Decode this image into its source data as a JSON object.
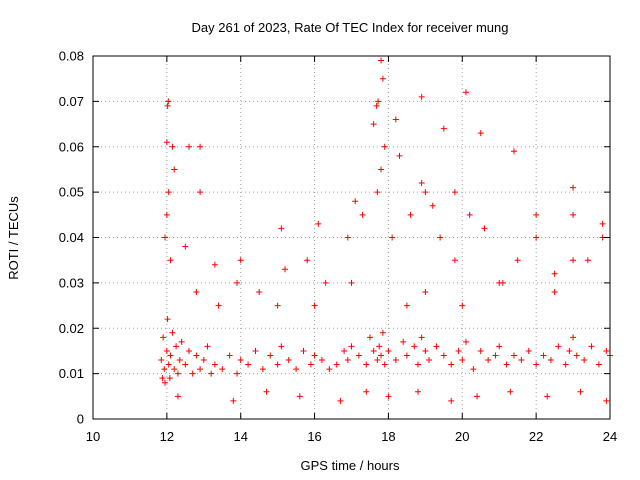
{
  "chart_data": {
    "type": "scatter",
    "title": "Day 261 of 2023, Rate Of TEC Index for receiver mung",
    "xlabel": "GPS time / hours",
    "ylabel": "ROTI / TECUs",
    "xlim": [
      10,
      24
    ],
    "ylim": [
      0,
      0.08
    ],
    "xticks": [
      10,
      12,
      14,
      16,
      18,
      20,
      22,
      24
    ],
    "yticks": [
      0,
      0.01,
      0.02,
      0.03,
      0.04,
      0.05,
      0.06,
      0.07,
      0.08
    ],
    "grid": true,
    "marker": "+",
    "color": "#ff0000",
    "points_x": [
      11.85,
      11.88,
      11.9,
      11.93,
      11.95,
      12.0,
      12.02,
      12.05,
      12.08,
      12.1,
      12.15,
      12.2,
      12.25,
      12.3,
      12.35,
      12.4,
      12.5,
      12.6,
      12.7,
      12.8,
      12.9,
      13.0,
      13.1,
      13.2,
      13.3,
      13.5,
      13.7,
      13.9,
      14.0,
      14.2,
      14.4,
      14.6,
      14.8,
      15.0,
      15.1,
      15.3,
      15.5,
      15.7,
      15.9,
      16.0,
      16.2,
      16.4,
      16.6,
      16.8,
      16.9,
      17.0,
      17.2,
      17.4,
      17.5,
      17.6,
      17.7,
      17.75,
      17.8,
      17.85,
      17.9,
      18.0,
      18.2,
      18.4,
      18.5,
      18.7,
      18.8,
      18.9,
      19.0,
      19.1,
      19.3,
      19.5,
      19.7,
      19.9,
      20.0,
      20.1,
      20.3,
      20.5,
      20.7,
      20.9,
      21.0,
      21.2,
      21.4,
      21.6,
      21.8,
      22.0,
      22.2,
      22.4,
      22.6,
      22.8,
      22.9,
      23.0,
      23.1,
      23.3,
      23.5,
      23.7,
      23.9,
      24.0,
      11.95,
      12.0,
      12.05,
      12.1,
      12.2,
      12.5,
      12.8,
      13.4,
      13.9,
      14.5,
      15.2,
      15.8,
      16.3,
      16.9,
      17.3,
      17.7,
      17.8,
      18.1,
      18.6,
      19.0,
      19.4,
      19.8,
      20.2,
      20.6,
      21.1,
      21.5,
      22.0,
      22.5,
      23.0,
      23.4,
      23.8,
      12.02,
      12.04,
      12.6,
      12.9,
      14.0,
      15.1,
      16.1,
      17.1,
      17.6,
      17.9,
      18.3,
      18.9,
      19.2,
      19.8,
      20.1,
      20.5,
      21.4,
      22.0,
      23.0,
      23.8,
      17.8,
      17.85,
      17.68,
      17.72,
      18.2,
      18.9,
      19.5,
      12.15,
      12.0,
      12.9,
      13.3,
      15.0,
      16.0,
      17.0,
      18.5,
      19.0,
      20.0,
      21.0,
      22.5,
      23.0,
      12.3,
      13.8,
      14.7,
      15.6,
      16.7,
      17.4,
      18.0,
      18.8,
      19.7,
      20.4,
      21.3,
      22.3,
      23.2,
      23.9
    ],
    "points_y": [
      0.013,
      0.009,
      0.018,
      0.011,
      0.008,
      0.015,
      0.022,
      0.012,
      0.009,
      0.014,
      0.019,
      0.011,
      0.016,
      0.01,
      0.013,
      0.017,
      0.012,
      0.015,
      0.01,
      0.014,
      0.011,
      0.013,
      0.016,
      0.01,
      0.012,
      0.011,
      0.014,
      0.01,
      0.013,
      0.012,
      0.015,
      0.011,
      0.014,
      0.012,
      0.016,
      0.013,
      0.011,
      0.015,
      0.012,
      0.014,
      0.013,
      0.011,
      0.012,
      0.015,
      0.013,
      0.016,
      0.014,
      0.012,
      0.018,
      0.015,
      0.013,
      0.016,
      0.014,
      0.019,
      0.012,
      0.015,
      0.013,
      0.017,
      0.014,
      0.016,
      0.012,
      0.018,
      0.015,
      0.013,
      0.016,
      0.014,
      0.012,
      0.015,
      0.013,
      0.017,
      0.011,
      0.015,
      0.013,
      0.014,
      0.016,
      0.012,
      0.014,
      0.013,
      0.015,
      0.012,
      0.014,
      0.013,
      0.016,
      0.012,
      0.015,
      0.018,
      0.014,
      0.013,
      0.016,
      0.012,
      0.015,
      0.014,
      0.04,
      0.045,
      0.05,
      0.035,
      0.055,
      0.038,
      0.028,
      0.025,
      0.03,
      0.028,
      0.033,
      0.035,
      0.03,
      0.04,
      0.045,
      0.05,
      0.055,
      0.04,
      0.045,
      0.05,
      0.04,
      0.035,
      0.045,
      0.042,
      0.03,
      0.035,
      0.04,
      0.032,
      0.045,
      0.035,
      0.04,
      0.069,
      0.07,
      0.06,
      0.06,
      0.035,
      0.042,
      0.043,
      0.048,
      0.065,
      0.06,
      0.058,
      0.052,
      0.047,
      0.05,
      0.072,
      0.063,
      0.059,
      0.045,
      0.051,
      0.043,
      0.079,
      0.075,
      0.069,
      0.07,
      0.066,
      0.071,
      0.064,
      0.06,
      0.061,
      0.05,
      0.034,
      0.025,
      0.025,
      0.03,
      0.025,
      0.028,
      0.025,
      0.03,
      0.028,
      0.035,
      0.005,
      0.004,
      0.006,
      0.005,
      0.004,
      0.006,
      0.005,
      0.006,
      0.004,
      0.005,
      0.006,
      0.005,
      0.006,
      0.004
    ]
  }
}
